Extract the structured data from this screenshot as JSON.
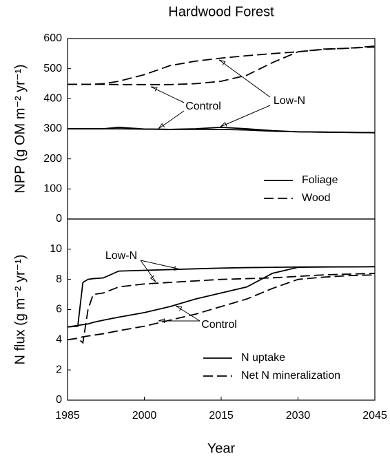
{
  "chart_data": [
    {
      "type": "line",
      "title": "Hardwood Forest",
      "y_label": "NPP (g OM m⁻² yr⁻¹)",
      "x": [
        1985,
        1987,
        1988,
        1989,
        1990,
        1992,
        1995,
        2000,
        2005,
        2010,
        2015,
        2020,
        2025,
        2030,
        2035,
        2040,
        2045
      ],
      "xlim": [
        1985,
        2045
      ],
      "ylim": [
        0,
        600
      ],
      "yticks": [
        0,
        100,
        200,
        300,
        400,
        500,
        600
      ],
      "series": [
        {
          "name": "Foliage",
          "color": "#000000",
          "dash": "none",
          "lines": [
            [
              300,
              300,
              300,
              300,
              300,
              300,
              300,
              299,
              298,
              300,
              305,
              300,
              294,
              290,
              289,
              288,
              287
            ],
            [
              300,
              300,
              300,
              300,
              300,
              300,
              305,
              299,
              298,
              298,
              298,
              296,
              292,
              290,
              289,
              288,
              287
            ]
          ]
        },
        {
          "name": "Wood",
          "color": "#000000",
          "dash": "14,6",
          "lines": [
            [
              448,
              448,
              448,
              448,
              448,
              450,
              458,
              480,
              510,
              525,
              535,
              543,
              550,
              556,
              564,
              568,
              572
            ],
            [
              448,
              448,
              448,
              448,
              448,
              448,
              447,
              447,
              447,
              450,
              458,
              478,
              520,
              556,
              565,
              568,
              575
            ]
          ]
        }
      ],
      "annotations": [
        "Control",
        "Low-N"
      ]
    },
    {
      "type": "line",
      "y_label": "N flux (g m⁻² yr⁻¹)",
      "x_label": "Year",
      "x": [
        1985,
        1987,
        1988,
        1989,
        1990,
        1992,
        1995,
        2000,
        2005,
        2010,
        2015,
        2020,
        2025,
        2030,
        2035,
        2040,
        2045
      ],
      "xlim": [
        1985,
        2045
      ],
      "xticks": [
        1985,
        2000,
        2015,
        2030,
        2045
      ],
      "ylim": [
        0,
        12
      ],
      "yticks": [
        0,
        2,
        4,
        6,
        8,
        10
      ],
      "series": [
        {
          "name": "N uptake",
          "color": "#000000",
          "dash": "none",
          "lines": [
            [
              4.85,
              4.9,
              7.8,
              8.0,
              8.05,
              8.1,
              8.55,
              8.6,
              8.65,
              8.7,
              8.75,
              8.78,
              8.8,
              8.82,
              8.83,
              8.83,
              8.84
            ],
            [
              4.85,
              4.95,
              5.0,
              5.05,
              5.15,
              5.3,
              5.5,
              5.8,
              6.2,
              6.7,
              7.1,
              7.5,
              8.4,
              8.8,
              8.82,
              8.83,
              8.84
            ]
          ]
        },
        {
          "name": "Net N mineralization",
          "color": "#000000",
          "dash": "14,6",
          "lines": [
            [
              4.0,
              4.1,
              3.8,
              6.0,
              7.0,
              7.1,
              7.5,
              7.7,
              7.8,
              7.9,
              8.0,
              8.05,
              8.1,
              8.2,
              8.3,
              8.35,
              8.4
            ],
            [
              4.0,
              4.1,
              4.2,
              4.25,
              4.3,
              4.4,
              4.6,
              4.9,
              5.3,
              5.7,
              6.2,
              6.7,
              7.4,
              8.0,
              8.15,
              8.25,
              8.3
            ]
          ]
        }
      ],
      "annotations": [
        "Low-N",
        "Control"
      ]
    }
  ]
}
